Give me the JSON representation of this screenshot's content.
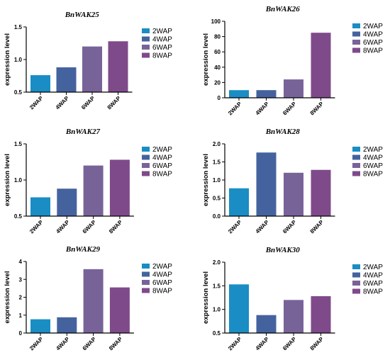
{
  "colors": {
    "2WAP": "#1a8dc4",
    "4WAP": "#44639e",
    "6WAP": "#786399",
    "8WAP": "#7f4a8a"
  },
  "chart_data": [
    {
      "type": "bar",
      "title": "BnWAK25",
      "ylabel": "expression level",
      "xlabel": "",
      "categories": [
        "2WAP",
        "4WAP",
        "6WAP",
        "8WAP"
      ],
      "values": [
        0.76,
        0.88,
        1.2,
        1.28
      ],
      "ylim": [
        0.5,
        1.5
      ],
      "yticks": [
        0.5,
        1.0,
        1.5
      ],
      "yticklabels": [
        "0.5",
        "1.0",
        "1.5"
      ],
      "legend": [
        "2WAP",
        "4WAP",
        "6WAP",
        "8WAP"
      ],
      "legend_position": "right",
      "grid": false
    },
    {
      "type": "bar",
      "title": "BnWAK26",
      "ylabel": "expression level",
      "xlabel": "",
      "categories": [
        "2WAP",
        "4WAP",
        "6WAP",
        "8WAP"
      ],
      "values": [
        10,
        10,
        24,
        85
      ],
      "ylim": [
        0,
        100
      ],
      "yticks": [
        0,
        20,
        40,
        60,
        80,
        100
      ],
      "yticklabels": [
        "0",
        "20",
        "40",
        "60",
        "80",
        "100"
      ],
      "legend": [
        "2WAP",
        "4WAP",
        "6WAP",
        "8WAP"
      ],
      "legend_position": "right",
      "grid": false
    },
    {
      "type": "bar",
      "title": "BnWAK27",
      "ylabel": "expression level",
      "xlabel": "",
      "categories": [
        "2WAP",
        "4WAP",
        "6WAP",
        "8WAP"
      ],
      "values": [
        0.76,
        0.88,
        1.2,
        1.28
      ],
      "ylim": [
        0.5,
        1.5
      ],
      "yticks": [
        0.5,
        1.0,
        1.5
      ],
      "yticklabels": [
        "0.5",
        "1.0",
        "1.5"
      ],
      "legend": [
        "2WAP",
        "4WAP",
        "6WAP",
        "8WAP"
      ],
      "legend_position": "right",
      "grid": false
    },
    {
      "type": "bar",
      "title": "BnWAK28",
      "ylabel": "expression level",
      "xlabel": "",
      "categories": [
        "2WAP",
        "4WAP",
        "6WAP",
        "8WAP"
      ],
      "values": [
        0.77,
        1.76,
        1.2,
        1.28
      ],
      "ylim": [
        0,
        2
      ],
      "yticks": [
        0,
        0.5,
        1.0,
        1.5,
        2.0
      ],
      "yticklabels": [
        "0.0",
        "0.5",
        "1.0",
        "1.5",
        "2.0"
      ],
      "legend": [
        "2WAP",
        "4WAP",
        "6WAP",
        "8WAP"
      ],
      "legend_position": "right",
      "grid": false
    },
    {
      "type": "bar",
      "title": "BnWAK29",
      "ylabel": "expression level",
      "xlabel": "",
      "categories": [
        "2WAP",
        "4WAP",
        "6WAP",
        "8WAP"
      ],
      "values": [
        0.77,
        0.88,
        3.57,
        2.55
      ],
      "ylim": [
        0,
        4
      ],
      "yticks": [
        0,
        1,
        2,
        3,
        4
      ],
      "yticklabels": [
        "0",
        "1",
        "2",
        "3",
        "4"
      ],
      "legend": [
        "2WAP",
        "4WAP",
        "6WAP",
        "8WAP"
      ],
      "legend_position": "right",
      "grid": false
    },
    {
      "type": "bar",
      "title": "BnWAK30",
      "ylabel": "expression level",
      "xlabel": "",
      "categories": [
        "2WAP",
        "4WAP",
        "6WAP",
        "8WAP"
      ],
      "values": [
        1.53,
        0.88,
        1.2,
        1.28
      ],
      "ylim": [
        0.5,
        2
      ],
      "yticks": [
        0.5,
        1.0,
        1.5,
        2.0
      ],
      "yticklabels": [
        "0.5",
        "1.0",
        "1.5",
        "2.0"
      ],
      "legend": [
        "2WAP",
        "4WAP",
        "6WAP",
        "8WAP"
      ],
      "legend_position": "right",
      "grid": false
    }
  ]
}
